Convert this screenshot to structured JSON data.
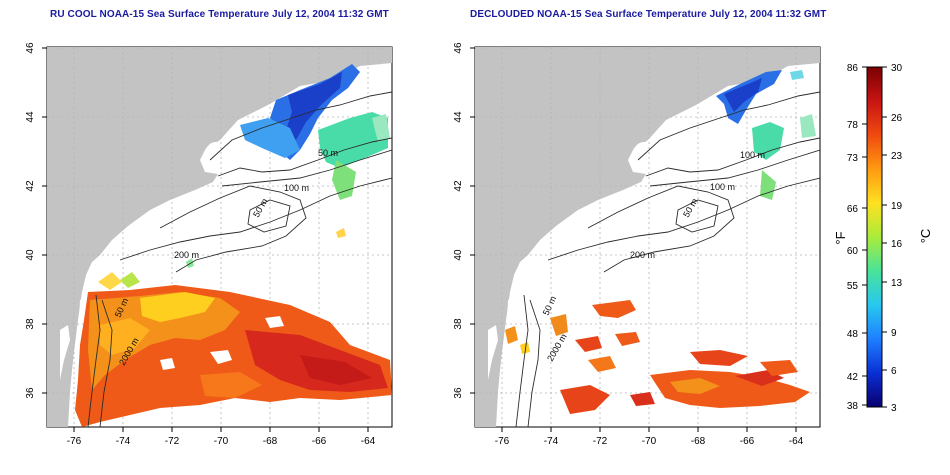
{
  "maps": [
    {
      "title": "RU COOL NOAA-15 Sea Surface Temperature July 12, 2004 11:32 GMT",
      "x_ticks": [
        "-76",
        "-74",
        "-72",
        "-70",
        "-68",
        "-66",
        "-64"
      ],
      "y_ticks": [
        "46",
        "44",
        "42",
        "40",
        "38",
        "36"
      ],
      "contour_labels": [
        "50 m",
        "100 m",
        "50 m",
        "200 m",
        "50 m",
        "2000 m"
      ]
    },
    {
      "title": "DECLOUDED NOAA-15 Sea Surface Temperature July 12, 2004 11:32 GMT",
      "x_ticks": [
        "-76",
        "-74",
        "-72",
        "-70",
        "-68",
        "-66",
        "-64"
      ],
      "y_ticks": [
        "46",
        "44",
        "42",
        "40",
        "38",
        "36"
      ],
      "contour_labels": [
        "100 m",
        "100 m",
        "50 m",
        "200 m",
        "50 m",
        "2000 m"
      ]
    }
  ],
  "colorbar": {
    "fahrenheit_label": "°F",
    "celsius_label": "°C",
    "fahrenheit_ticks": [
      "86",
      "78",
      "73",
      "66",
      "60",
      "55",
      "48",
      "42",
      "38"
    ],
    "celsius_ticks": [
      "30",
      "26",
      "23",
      "19",
      "16",
      "13",
      "9",
      "6",
      "3"
    ],
    "colors": [
      "#08006e",
      "#0a2fd4",
      "#1f7fff",
      "#27c8f0",
      "#49e39a",
      "#a9ec3a",
      "#ffe020",
      "#ff9a10",
      "#ef4a10",
      "#c81414",
      "#7a0000"
    ]
  },
  "colors": {
    "land": "#c3c3c3",
    "ocean": "#ffffff",
    "title": "#1a1aa0",
    "grid": "#b5b5b5",
    "contour": "#2b2b2b"
  }
}
